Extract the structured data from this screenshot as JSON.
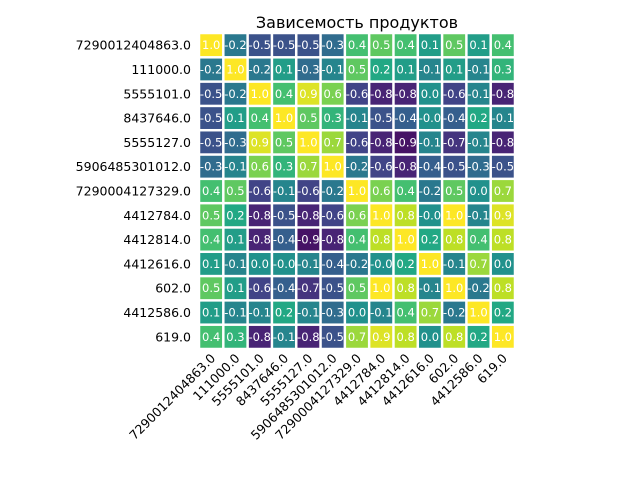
{
  "chart_data": {
    "type": "heatmap",
    "title": "Зависемость продуктов",
    "xlabel": "",
    "ylabel": "",
    "colormap": "viridis",
    "value_range": [
      -1.0,
      1.0
    ],
    "grid": false,
    "labels": [
      "7290012404863.0",
      "111000.0",
      "5555101.0",
      "8437646.0",
      "5555127.0",
      "5906485301012.0",
      "7290004127329.0",
      "4412784.0",
      "4412814.0",
      "4412616.0",
      "602.0",
      "4412586.0",
      "619.0"
    ],
    "values": [
      [
        1.0,
        -0.2,
        -0.5,
        -0.5,
        -0.5,
        -0.3,
        0.4,
        0.5,
        0.4,
        0.1,
        0.5,
        0.1,
        0.4
      ],
      [
        -0.2,
        1.0,
        -0.2,
        0.1,
        -0.3,
        -0.1,
        0.5,
        0.2,
        0.1,
        -0.1,
        0.1,
        -0.1,
        0.3
      ],
      [
        -0.5,
        -0.2,
        1.0,
        0.4,
        0.9,
        0.6,
        -0.6,
        -0.8,
        -0.8,
        0.0,
        -0.6,
        -0.1,
        -0.8
      ],
      [
        -0.5,
        0.1,
        0.4,
        1.0,
        0.5,
        0.3,
        -0.1,
        -0.5,
        -0.4,
        -0.0,
        -0.4,
        0.2,
        -0.1
      ],
      [
        -0.5,
        -0.3,
        0.9,
        0.5,
        1.0,
        0.7,
        -0.6,
        -0.8,
        -0.9,
        -0.1,
        -0.7,
        -0.1,
        -0.8
      ],
      [
        -0.3,
        -0.1,
        0.6,
        0.3,
        0.7,
        1.0,
        -0.2,
        -0.6,
        -0.8,
        -0.4,
        -0.5,
        -0.3,
        -0.5
      ],
      [
        0.4,
        0.5,
        -0.6,
        -0.1,
        -0.6,
        -0.2,
        1.0,
        0.6,
        0.4,
        -0.2,
        0.5,
        0.0,
        0.7
      ],
      [
        0.5,
        0.2,
        -0.8,
        -0.5,
        -0.8,
        -0.6,
        0.6,
        1.0,
        0.8,
        -0.0,
        1.0,
        -0.1,
        0.9
      ],
      [
        0.4,
        0.1,
        -0.8,
        -0.4,
        -0.9,
        -0.8,
        0.4,
        0.8,
        1.0,
        0.2,
        0.8,
        0.4,
        0.8
      ],
      [
        0.1,
        -0.1,
        0.0,
        -0.0,
        -0.1,
        -0.4,
        -0.2,
        -0.0,
        0.2,
        1.0,
        -0.1,
        0.7,
        0.0
      ],
      [
        0.5,
        0.1,
        -0.6,
        -0.4,
        -0.7,
        -0.5,
        0.5,
        1.0,
        0.8,
        -0.1,
        1.0,
        -0.2,
        0.8
      ],
      [
        0.1,
        -0.1,
        -0.1,
        0.2,
        -0.1,
        -0.3,
        0.0,
        -0.1,
        0.4,
        0.7,
        -0.2,
        1.0,
        0.2
      ],
      [
        0.4,
        0.3,
        -0.8,
        -0.1,
        -0.8,
        -0.5,
        0.7,
        0.9,
        0.8,
        0.0,
        0.8,
        0.2,
        1.0
      ]
    ],
    "cell_labels": [
      [
        "1.0",
        "-0.2",
        "-0.5",
        "-0.5",
        "-0.5",
        "-0.3",
        "0.4",
        "0.5",
        "0.4",
        "0.1",
        "0.5",
        "0.1",
        "0.4"
      ],
      [
        "-0.2",
        "1.0",
        "-0.2",
        "0.1",
        "-0.3",
        "-0.1",
        "0.5",
        "0.2",
        "0.1",
        "-0.1",
        "0.1",
        "-0.1",
        "0.3"
      ],
      [
        "-0.5",
        "-0.2",
        "1.0",
        "0.4",
        "0.9",
        "0.6",
        "-0.6",
        "-0.8",
        "-0.8",
        "0.0",
        "-0.6",
        "-0.1",
        "-0.8"
      ],
      [
        "-0.5",
        "0.1",
        "0.4",
        "1.0",
        "0.5",
        "0.3",
        "-0.1",
        "-0.5",
        "-0.4",
        "-0.0",
        "-0.4",
        "0.2",
        "-0.1"
      ],
      [
        "-0.5",
        "-0.3",
        "0.9",
        "0.5",
        "1.0",
        "0.7",
        "-0.6",
        "-0.8",
        "-0.9",
        "-0.1",
        "-0.7",
        "-0.1",
        "-0.8"
      ],
      [
        "-0.3",
        "-0.1",
        "0.6",
        "0.3",
        "0.7",
        "1.0",
        "-0.2",
        "-0.6",
        "-0.8",
        "-0.4",
        "-0.5",
        "-0.3",
        "-0.5"
      ],
      [
        "0.4",
        "0.5",
        "-0.6",
        "-0.1",
        "-0.6",
        "-0.2",
        "1.0",
        "0.6",
        "0.4",
        "-0.2",
        "0.5",
        "0.0",
        "0.7"
      ],
      [
        "0.5",
        "0.2",
        "-0.8",
        "-0.5",
        "-0.8",
        "-0.6",
        "0.6",
        "1.0",
        "0.8",
        "-0.0",
        "1.0",
        "-0.1",
        "0.9"
      ],
      [
        "0.4",
        "0.1",
        "-0.8",
        "-0.4",
        "-0.9",
        "-0.8",
        "0.4",
        "0.8",
        "1.0",
        "0.2",
        "0.8",
        "0.4",
        "0.8"
      ],
      [
        "0.1",
        "-0.1",
        "0.0",
        "-0.0",
        "-0.1",
        "-0.4",
        "-0.2",
        "-0.0",
        "0.2",
        "1.0",
        "-0.1",
        "0.7",
        "0.0"
      ],
      [
        "0.5",
        "0.1",
        "-0.6",
        "-0.4",
        "-0.7",
        "-0.5",
        "0.5",
        "1.0",
        "0.8",
        "-0.1",
        "1.0",
        "-0.2",
        "0.8"
      ],
      [
        "0.1",
        "-0.1",
        "-0.1",
        "0.2",
        "-0.1",
        "-0.3",
        "0.0",
        "-0.1",
        "0.4",
        "0.7",
        "-0.2",
        "1.0",
        "0.2"
      ],
      [
        "0.4",
        "0.3",
        "-0.8",
        "-0.1",
        "-0.8",
        "-0.5",
        "0.7",
        "0.9",
        "0.8",
        "0.0",
        "0.8",
        "0.2",
        "1.0"
      ]
    ]
  }
}
